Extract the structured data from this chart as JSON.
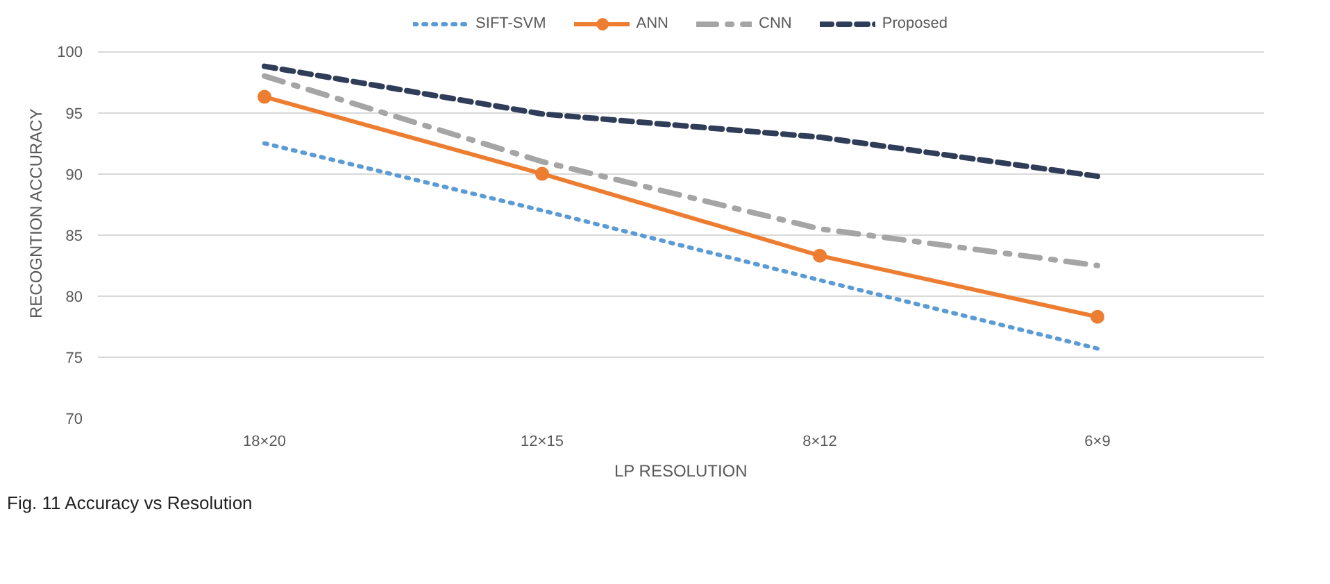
{
  "chart_data": {
    "type": "line",
    "xlabel": "LP RESOLUTION",
    "ylabel": "RECOGNTION ACCURACY",
    "categories": [
      "18×20",
      "12×15",
      "8×12",
      "6×9"
    ],
    "series": [
      {
        "name": "SIFT-SVM",
        "color": "#5b9bd5",
        "values": [
          92.5,
          87,
          81.3,
          75.7
        ],
        "line_style": "dotted",
        "marker": "none"
      },
      {
        "name": "ANN",
        "color": "#ed7d31",
        "values": [
          96.3,
          90,
          83.3,
          78.3
        ],
        "line_style": "solid",
        "marker": "circle"
      },
      {
        "name": "CNN",
        "color": "#a5a5a5",
        "values": [
          98,
          91,
          85.5,
          82.5
        ],
        "line_style": "dashdot",
        "marker": "none"
      },
      {
        "name": "Proposed",
        "color": "#2f3d58",
        "values": [
          98.8,
          94.9,
          93,
          89.8
        ],
        "line_style": "dashed",
        "marker": "none"
      }
    ],
    "ylim": [
      70,
      100
    ],
    "yticks": [
      70,
      75,
      80,
      85,
      90,
      95,
      100
    ],
    "grid": "y",
    "legend": "top",
    "annotations": [
      "Fig. 11  Accuracy vs Resolution"
    ]
  }
}
